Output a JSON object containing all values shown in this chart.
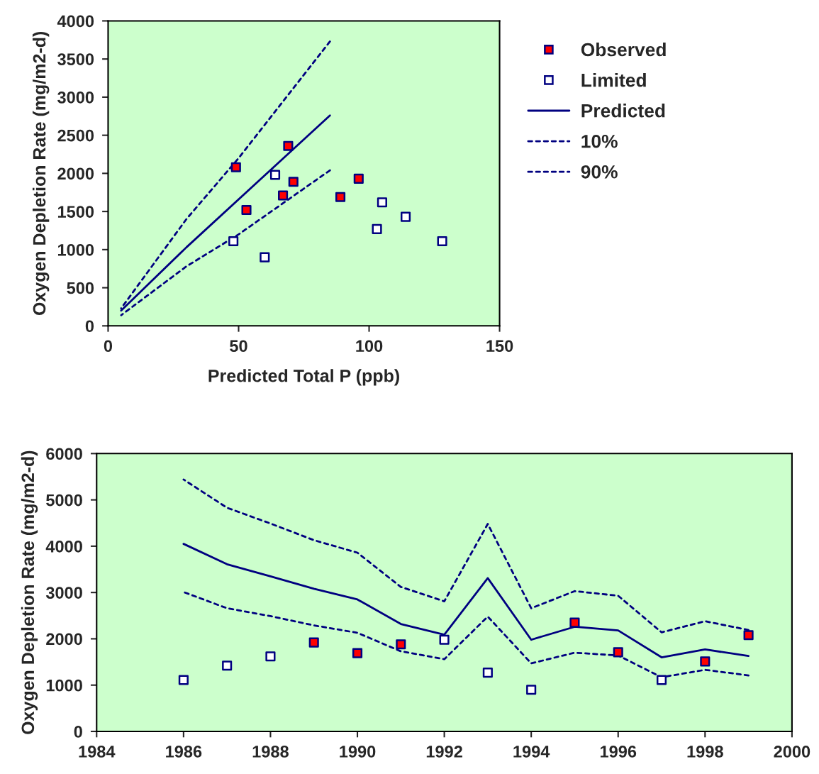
{
  "chart_data": [
    {
      "type": "scatter",
      "xlabel": "Predicted Total P (ppb)",
      "ylabel": "Oxygen Depletion Rate (mg/m2-d)",
      "xlim": [
        0,
        150
      ],
      "xticks": [
        0,
        50,
        100,
        150
      ],
      "ylim": [
        0,
        4000
      ],
      "yticks": [
        0,
        500,
        1000,
        1500,
        2000,
        2500,
        3000,
        3500,
        4000
      ],
      "grid": false,
      "legend": "right",
      "series": [
        {
          "name": "Observed",
          "type": "scatter",
          "marker": "square",
          "color": "#ff0000",
          "x": [
            49,
            53,
            67,
            69,
            71,
            89,
            96
          ],
          "values": [
            2080,
            1520,
            1710,
            2360,
            1890,
            1690,
            1930
          ]
        },
        {
          "name": "Limited",
          "type": "scatter",
          "marker": "square",
          "color": "#ffffff",
          "x": [
            48,
            60,
            64,
            103,
            105,
            114,
            128
          ],
          "values": [
            1110,
            900,
            1980,
            1270,
            1620,
            1430,
            1110
          ]
        },
        {
          "name": "Predicted",
          "type": "line",
          "marker": "none",
          "line_style": "solid",
          "color": "#000080",
          "x": [
            5,
            30,
            85
          ],
          "values": [
            200,
            1030,
            2760
          ]
        },
        {
          "name": "10%",
          "type": "line",
          "marker": "none",
          "line_style": "dotted",
          "color": "#000080",
          "x": [
            5,
            30,
            50,
            85
          ],
          "values": [
            140,
            780,
            1200,
            2040
          ]
        },
        {
          "name": "90%",
          "type": "line",
          "marker": "none",
          "line_style": "dotted",
          "color": "#000080",
          "x": [
            5,
            30,
            50,
            85
          ],
          "values": [
            230,
            1400,
            2200,
            3730
          ]
        }
      ]
    },
    {
      "type": "scatter",
      "ylabel": "Oxygen Depletion Rate (mg/m2-d)",
      "xlim": [
        1984,
        2000
      ],
      "xticks": [
        1984,
        1986,
        1988,
        1990,
        1992,
        1994,
        1996,
        1998,
        2000
      ],
      "ylim": [
        0,
        6000
      ],
      "yticks": [
        0,
        1000,
        2000,
        3000,
        4000,
        5000,
        6000
      ],
      "grid": false,
      "series": [
        {
          "type": "scatter",
          "marker": "square",
          "color": "#ff0000",
          "x": [
            1989,
            1990,
            1991,
            1995,
            1996,
            1998,
            1999
          ],
          "values": [
            1920,
            1690,
            1880,
            2350,
            1710,
            1510,
            2080
          ]
        },
        {
          "type": "scatter",
          "marker": "square",
          "color": "#ffffff",
          "x": [
            1986,
            1987,
            1988,
            1992,
            1993,
            1994,
            1997
          ],
          "values": [
            1110,
            1420,
            1620,
            1980,
            1270,
            900,
            1110
          ]
        },
        {
          "type": "line",
          "marker": "none",
          "line_style": "solid",
          "color": "#000080",
          "x": [
            1986,
            1987,
            1988,
            1989,
            1990,
            1991,
            1992,
            1993,
            1994,
            1995,
            1996,
            1997,
            1998,
            1999
          ],
          "values": [
            4050,
            3610,
            3350,
            3080,
            2850,
            2320,
            2090,
            3310,
            1980,
            2260,
            2180,
            1600,
            1770,
            1630
          ]
        },
        {
          "type": "line",
          "marker": "none",
          "line_style": "dotted",
          "color": "#000080",
          "x": [
            1986,
            1987,
            1988,
            1989,
            1990,
            1991,
            1992,
            1993,
            1994,
            1995,
            1996,
            1997,
            1998,
            1999
          ],
          "values": [
            3010,
            2660,
            2490,
            2290,
            2130,
            1730,
            1560,
            2480,
            1470,
            1700,
            1640,
            1170,
            1330,
            1210
          ]
        },
        {
          "type": "line",
          "marker": "none",
          "line_style": "dotted",
          "color": "#000080",
          "x": [
            1986,
            1987,
            1988,
            1989,
            1990,
            1991,
            1992,
            1993,
            1994,
            1995,
            1996,
            1997,
            1998,
            1999
          ],
          "values": [
            5440,
            4830,
            4490,
            4130,
            3860,
            3120,
            2810,
            4480,
            2660,
            3030,
            2930,
            2140,
            2380,
            2190
          ]
        }
      ]
    }
  ]
}
